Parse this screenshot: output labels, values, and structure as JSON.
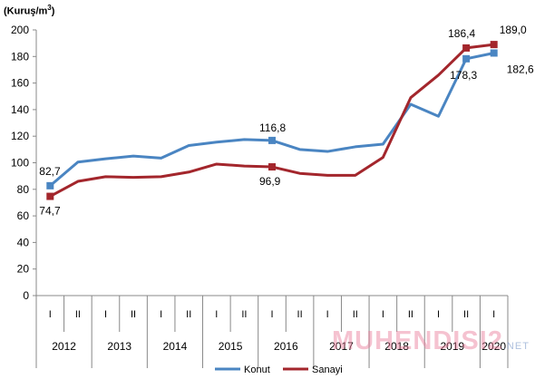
{
  "unit_label": {
    "prefix": "(Kuruş/m",
    "sup": "3",
    "suffix": ")"
  },
  "watermark": {
    "main": "MUHENDISI2",
    "suffix": ".NET"
  },
  "colors": {
    "konut": "#4a85c2",
    "sanayi": "#a3262c",
    "axis": "#888888",
    "grid": "#c8c8c8"
  },
  "chart_data": {
    "type": "line",
    "title": "",
    "ylabel": "(Kuruş/m³)",
    "ylim": [
      0,
      200
    ],
    "yticks": [
      0,
      20,
      40,
      60,
      80,
      100,
      120,
      140,
      160,
      180,
      200
    ],
    "categories": [
      "I",
      "II",
      "I",
      "II",
      "I",
      "II",
      "I",
      "II",
      "I",
      "II",
      "I",
      "II",
      "I",
      "II",
      "I",
      "II",
      "I"
    ],
    "years": [
      "2012",
      "2013",
      "2014",
      "2015",
      "2016",
      "2017",
      "2018",
      "2019",
      "2020"
    ],
    "legend_position": "bottom",
    "series": [
      {
        "name": "Konut",
        "color": "#4a85c2",
        "values": [
          82.7,
          100.5,
          103,
          105,
          103.5,
          113,
          115.5,
          117.5,
          116.8,
          110,
          108.5,
          112,
          114,
          144,
          135,
          178.3,
          182.6
        ],
        "markers": [
          0,
          8,
          15,
          16
        ]
      },
      {
        "name": "Sanayi",
        "color": "#a3262c",
        "values": [
          74.7,
          86,
          89.5,
          89,
          89.5,
          93,
          99,
          97.5,
          96.9,
          92,
          90.5,
          90.5,
          104,
          149,
          166,
          186.4,
          189.0
        ],
        "markers": [
          0,
          8,
          15,
          16
        ]
      }
    ],
    "data_labels": [
      {
        "series": 0,
        "index": 0,
        "text": "82,7"
      },
      {
        "series": 1,
        "index": 0,
        "text": "74,7"
      },
      {
        "series": 0,
        "index": 8,
        "text": "116,8"
      },
      {
        "series": 1,
        "index": 8,
        "text": "96,9"
      },
      {
        "series": 1,
        "index": 15,
        "text": "186,4"
      },
      {
        "series": 1,
        "index": 16,
        "text": "189,0"
      },
      {
        "series": 0,
        "index": 15,
        "text": "178,3"
      },
      {
        "series": 0,
        "index": 16,
        "text": "182,6"
      }
    ]
  }
}
